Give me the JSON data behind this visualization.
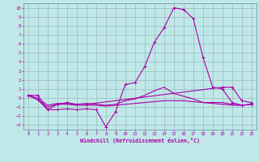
{
  "xlabel": "Windchill (Refroidissement éolien,°C)",
  "bg_color": "#c0e8e8",
  "line_color": "#aa00aa",
  "grid_color": "#99bbbb",
  "xlim": [
    -0.5,
    23.5
  ],
  "ylim": [
    -3.5,
    10.5
  ],
  "xticks": [
    0,
    1,
    2,
    3,
    4,
    5,
    6,
    7,
    8,
    9,
    10,
    11,
    12,
    13,
    14,
    15,
    16,
    17,
    18,
    19,
    20,
    21,
    22,
    23
  ],
  "yticks": [
    -3,
    -2,
    -1,
    0,
    1,
    2,
    3,
    4,
    5,
    6,
    7,
    8,
    9,
    10
  ],
  "line1_x": [
    0,
    1,
    2,
    3,
    4,
    5,
    6,
    7,
    8,
    9,
    10,
    11,
    12,
    13,
    14,
    15,
    16,
    17,
    18,
    19,
    20,
    21,
    22,
    23
  ],
  "line1_y": [
    0.3,
    -0.2,
    -1.3,
    -1.3,
    -1.2,
    -1.3,
    -1.2,
    -1.3,
    -3.2,
    -1.5,
    1.5,
    1.7,
    3.5,
    6.2,
    7.8,
    10.0,
    9.8,
    8.8,
    4.5,
    1.2,
    1.0,
    -0.5,
    -0.8,
    -0.7
  ],
  "line2_x": [
    0,
    1,
    2,
    3,
    4,
    5,
    6,
    7,
    8,
    9,
    10,
    11,
    12,
    13,
    14,
    15,
    16,
    17,
    18,
    19,
    20,
    21,
    22,
    23
  ],
  "line2_y": [
    0.3,
    0.0,
    -0.8,
    -0.6,
    -0.6,
    -0.7,
    -0.6,
    -0.7,
    -0.8,
    -0.7,
    -0.3,
    -0.1,
    0.3,
    0.8,
    1.2,
    0.5,
    0.2,
    -0.1,
    -0.5,
    -0.6,
    -0.7,
    -0.8,
    -0.8,
    -0.7
  ],
  "line3_x": [
    0,
    1,
    2,
    3,
    4,
    5,
    6,
    7,
    8,
    9,
    10,
    11,
    12,
    13,
    14,
    15,
    16,
    17,
    18,
    19,
    20,
    21,
    22,
    23
  ],
  "line3_y": [
    0.3,
    -0.2,
    -1.0,
    -0.7,
    -0.7,
    -0.8,
    -0.8,
    -0.8,
    -0.9,
    -0.8,
    -0.7,
    -0.6,
    -0.5,
    -0.4,
    -0.3,
    -0.3,
    -0.3,
    -0.4,
    -0.5,
    -0.5,
    -0.5,
    -0.7,
    -0.8,
    -0.7
  ],
  "line4_x": [
    0,
    1,
    2,
    3,
    4,
    5,
    6,
    20,
    21,
    22,
    23
  ],
  "line4_y": [
    0.3,
    0.3,
    -1.3,
    -0.7,
    -0.5,
    -0.7,
    -0.7,
    1.2,
    1.2,
    -0.3,
    -0.5
  ]
}
